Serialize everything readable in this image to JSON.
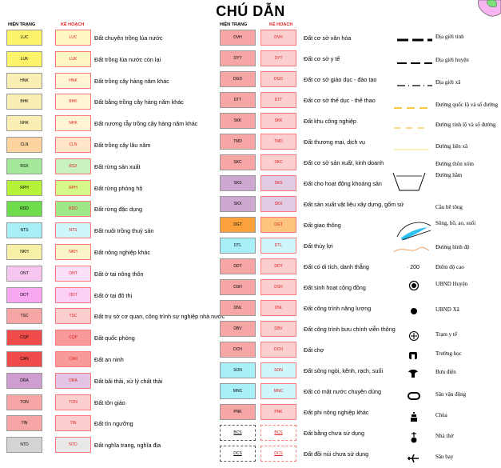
{
  "title": "CHÚ DẪN",
  "headers": {
    "current": "HIỆN TRẠNG",
    "plan": "KẾ HOẠCH"
  },
  "col1": [
    {
      "code": "LUC",
      "plan_code": "LUC",
      "label": "Đất chuyên trồng lúa nước",
      "color": "#fdf36b",
      "plan_color": "#fff6c4"
    },
    {
      "code": "LUK",
      "plan_code": "LUK",
      "label": "Đất trồng lúa nước còn lại",
      "color": "#fdf36b",
      "plan_color": "#fff6c4"
    },
    {
      "code": "HNK",
      "plan_code": "HNK",
      "label": "Đất trồng cây hàng năm khác",
      "color": "#fbeeb3",
      "plan_color": "#fff4d6"
    },
    {
      "code": "BHK",
      "plan_code": "BHK",
      "label": "Đất bằng trồng cây hàng năm khác",
      "color": "#fbeeb3",
      "plan_color": "#fff4d6"
    },
    {
      "code": "NHK",
      "plan_code": "NHK",
      "label": "Đất nương rẫy trồng cây hàng năm khác",
      "color": "#fbeeb3",
      "plan_color": "#fff4d6"
    },
    {
      "code": "CLN",
      "plan_code": "CLN",
      "label": "Đất trồng cây lâu năm",
      "color": "#fdd3a0",
      "plan_color": "#ffe6c8"
    },
    {
      "code": "RSX",
      "plan_code": "RSX",
      "label": "Đất rừng sản xuất",
      "color": "#a5e89a",
      "plan_color": "#c9f2c0"
    },
    {
      "code": "RPH",
      "plan_code": "RPH",
      "label": "Đất rừng phòng hộ",
      "color": "#b6f23a",
      "plan_color": "#d4f88a"
    },
    {
      "code": "RDD",
      "plan_code": "RDD",
      "label": "Đất rừng đặc dụng",
      "color": "#6fdc4e",
      "plan_color": "#9fe88a"
    },
    {
      "code": "NTS",
      "plan_code": "NTS",
      "label": "Đất nuôi trồng thuỷ sản",
      "color": "#a8f0f8",
      "plan_color": "#cff7fb"
    },
    {
      "code": "NKH",
      "plan_code": "NKH",
      "label": "Đất nông nghiệp khác",
      "color": "#f7f0a6",
      "plan_color": "#faf5c8"
    },
    {
      "code": "ONT",
      "plan_code": "ONT",
      "label": "Đất ở tại nông thôn",
      "color": "#f7c6f0",
      "plan_color": "#fbe0f7"
    },
    {
      "code": "ODT",
      "plan_code": "ODT",
      "label": "Đất ở tại đô thị",
      "color": "#f7a8f0",
      "plan_color": "#fbd0f7"
    },
    {
      "code": "TSC",
      "plan_code": "TSC",
      "label": "Đất trụ sở cơ quan, công trình sự nghiệp nhà nước",
      "color": "#f7a6a6",
      "plan_color": "#fbcfcf"
    },
    {
      "code": "CQP",
      "plan_code": "CQP",
      "label": "Đất quốc phòng",
      "color": "#ef4b4b",
      "plan_color": "#f99a9a"
    },
    {
      "code": "CAN",
      "plan_code": "CAN",
      "label": "Đất an ninh",
      "color": "#ef4b4b",
      "plan_color": "#f99a9a"
    },
    {
      "code": "DRA",
      "plan_code": "DRA",
      "label": "Đất bãi thải, xử lý chất thải",
      "color": "#cf9ed0",
      "plan_color": "#e3c4e4"
    },
    {
      "code": "TON",
      "plan_code": "TON",
      "label": "Đất tôn giáo",
      "color": "#f7a6a6",
      "plan_color": "#fbcfcf"
    },
    {
      "code": "TIN",
      "plan_code": "TIN",
      "label": "Đất tín ngưỡng",
      "color": "#f7a6a6",
      "plan_color": "#fbcfcf"
    },
    {
      "code": "NTD",
      "plan_code": "NTD",
      "label": "Đất nghĩa trang, nghĩa địa",
      "color": "#d4d4d4",
      "plan_color": "#e8e8e8"
    }
  ],
  "col2": [
    {
      "code": "DVH",
      "plan_code": "DVH",
      "label": "Đất cơ sở văn hóa",
      "color": "#f7a6a6",
      "plan_color": "#fbcfcf"
    },
    {
      "code": "DYT",
      "plan_code": "DYT",
      "label": "Đất cơ sở y tế",
      "color": "#f7a6a6",
      "plan_color": "#fbcfcf"
    },
    {
      "code": "DGD",
      "plan_code": "DGD",
      "label": "Đất cơ sở giáo dục - đào tạo",
      "color": "#f7a6a6",
      "plan_color": "#fbcfcf"
    },
    {
      "code": "DTT",
      "plan_code": "DTT",
      "label": "Đất cơ sở thể dục - thể thao",
      "color": "#f7a6a6",
      "plan_color": "#fbcfcf"
    },
    {
      "code": "SKK",
      "plan_code": "SKK",
      "label": "Đất khu công nghiệp",
      "color": "#f7a6a6",
      "plan_color": "#fbcfcf"
    },
    {
      "code": "TMD",
      "plan_code": "TMD",
      "label": "Đất thương mại, dịch vụ",
      "color": "#f7a6a6",
      "plan_color": "#fbcfcf"
    },
    {
      "code": "SKC",
      "plan_code": "SKC",
      "label": "Đất cơ sở sản xuất, kinh doanh",
      "color": "#f7a6a6",
      "plan_color": "#fbcfcf"
    },
    {
      "code": "SKS",
      "plan_code": "SKS",
      "label": "Đất cho hoạt động khoáng sản",
      "color": "#cda8d0",
      "plan_color": "#e2cce4"
    },
    {
      "code": "SKX",
      "plan_code": "SKX",
      "label": "Đất sản xuất vật liệu xây dựng, gốm sứ",
      "color": "#cda8d0",
      "plan_color": "#e2cce4"
    },
    {
      "code": "DGT",
      "plan_code": "DGT",
      "label": "Đất giao thông",
      "color": "#fba23c",
      "plan_color": "#fdc47f"
    },
    {
      "code": "DTL",
      "plan_code": "DTL",
      "label": "Đất thủy lợi",
      "color": "#a8f0f8",
      "plan_color": "#cff7fb"
    },
    {
      "code": "DDT",
      "plan_code": "DDT",
      "label": "Đất có di tích, danh thắng",
      "color": "#f7a6a6",
      "plan_color": "#fbcfcf"
    },
    {
      "code": "DSH",
      "plan_code": "DSH",
      "label": "Đất sinh hoạt cộng đồng",
      "color": "#f7a6a6",
      "plan_color": "#fbcfcf"
    },
    {
      "code": "DNL",
      "plan_code": "DNL",
      "label": "Đất công trình năng lượng",
      "color": "#f7a6a6",
      "plan_color": "#fbcfcf"
    },
    {
      "code": "DBV",
      "plan_code": "DBV",
      "label": "Đất công trình bưu chính viễn thông",
      "color": "#f7a6a6",
      "plan_color": "#fbcfcf"
    },
    {
      "code": "DCH",
      "plan_code": "DCH",
      "label": "Đất chợ",
      "color": "#f7a6a6",
      "plan_color": "#fbcfcf"
    },
    {
      "code": "SON",
      "plan_code": "SON",
      "label": "Đất sông ngòi, kênh, rạch, suối",
      "color": "#a8f0f8",
      "plan_color": "#cff7fb"
    },
    {
      "code": "MNC",
      "plan_code": "MNC",
      "label": "Đất có mặt nước chuyên dùng",
      "color": "#a8f0f8",
      "plan_color": "#cff7fb"
    },
    {
      "code": "PNK",
      "plan_code": "PNK",
      "label": "Đất phi nông nghiệp khác",
      "color": "#f7a6a6",
      "plan_color": "#fbcfcf"
    },
    {
      "code": "BCS",
      "plan_code": "BCS",
      "label": "Đất bằng chưa sử dụng",
      "color": "#ffffff",
      "plan_color": "#ffffff"
    },
    {
      "code": "DCS",
      "plan_code": "DCS",
      "label": "Đất đồi núi chưa sử dụng",
      "color": "#ffffff",
      "plan_color": "#ffffff"
    }
  ],
  "symbols": [
    {
      "icon": "province-boundary-icon",
      "label": "Địa giới tỉnh"
    },
    {
      "icon": "district-boundary-icon",
      "label": "Địa giới huyện"
    },
    {
      "icon": "commune-boundary-icon",
      "label": "Địa giới xã"
    },
    {
      "icon": "national-road-icon",
      "label": "Đường quốc lộ và số đường"
    },
    {
      "icon": "provincial-road-icon",
      "label": "Đường tỉnh lộ và số đường"
    },
    {
      "icon": "inter-commune-road-icon",
      "label": "Đường liên xã"
    },
    {
      "icon": "hamlet-road-icon",
      "label": "Đường thôn xóm"
    },
    {
      "icon": "tunnel-icon",
      "label": "Đường hầm"
    },
    {
      "icon": "concrete-bridge-icon",
      "label": "Cầu bê tông"
    },
    {
      "icon": "river-lake-icon",
      "label": "Sông, hồ, ao, suối"
    },
    {
      "icon": "contour-line-icon",
      "label": "Đường bình độ"
    },
    {
      "icon": "elevation-point-icon",
      "label": "Điểm độ cao",
      "value": "· 200"
    },
    {
      "icon": "district-committee-icon",
      "label": "UBND Huyện"
    },
    {
      "icon": "commune-committee-icon",
      "label": "UBND Xã"
    },
    {
      "icon": "health-station-icon",
      "label": "Trạm y tế"
    },
    {
      "icon": "school-icon",
      "label": "Trường học"
    },
    {
      "icon": "post-office-icon",
      "label": "Bưu điện"
    },
    {
      "icon": "stadium-icon",
      "label": "Sân vận động"
    },
    {
      "icon": "pagoda-icon",
      "label": "Chùa"
    },
    {
      "icon": "church-icon",
      "label": "Nhà thờ"
    },
    {
      "icon": "airport-icon",
      "label": "Sân bay"
    }
  ]
}
